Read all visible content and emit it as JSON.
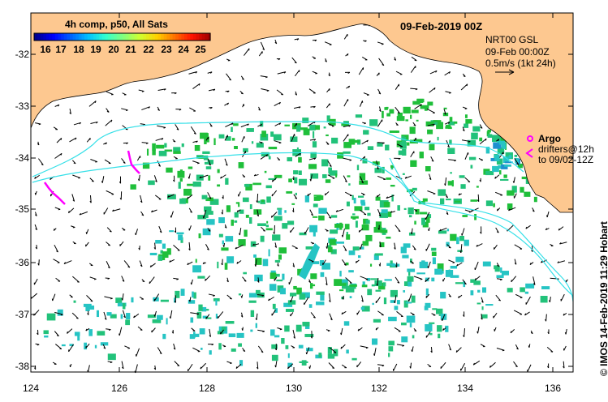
{
  "header": {
    "colorbar_title": "4h comp, p50, All Sats",
    "date_title": "09-Feb-2019 00Z"
  },
  "colorbar": {
    "labels": [
      "16",
      "17",
      "18",
      "19",
      "20",
      "21",
      "22",
      "23",
      "24",
      "25"
    ],
    "colormap": [
      "#00008f",
      "#0000ff",
      "#0060ff",
      "#00c0ff",
      "#30ffd0",
      "#80ff80",
      "#d0ff30",
      "#ffd000",
      "#ff7000",
      "#ff1000",
      "#a00000"
    ]
  },
  "current_info": {
    "product": "NRT00 GSL",
    "valid_time": "09-Feb 00:00Z",
    "scale": "0.5m/s (1kt 24h)"
  },
  "legend": {
    "argo_label": "Argo",
    "drifters_label": "drifters@12h",
    "drifters_period": "to 09/02-12Z",
    "argo_color": "#ff00ff",
    "drifter_color": "#ff00ff"
  },
  "axes": {
    "y_ticks": [
      "-32",
      "-33",
      "-34",
      "-35",
      "-36",
      "-37",
      "-38"
    ],
    "x_ticks": [
      "124",
      "126",
      "128",
      "130",
      "132",
      "134",
      "136"
    ]
  },
  "credit": "© IMOS 14-Feb-2019 11:29 Hobart",
  "colors": {
    "land": "#fdc890",
    "ocean": "#ffffff",
    "contour": "#36e0e8",
    "sst_warm": "#1fbf3a",
    "sst_mid": "#22c27a",
    "sst_cool": "#26c4c4"
  }
}
